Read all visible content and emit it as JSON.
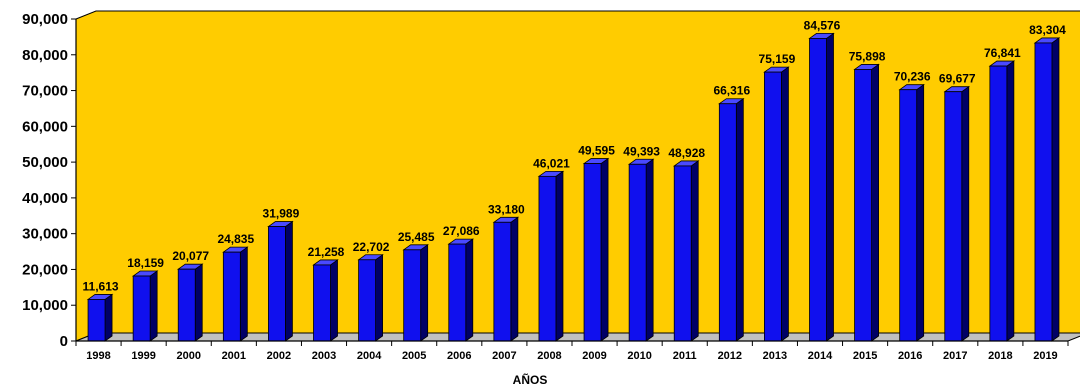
{
  "chart_data": {
    "type": "bar",
    "title": "",
    "xlabel": "AÑOS",
    "ylabel": "",
    "ylim": [
      0,
      90000
    ],
    "yticks": [
      "0",
      "10,000",
      "20,000",
      "30,000",
      "40,000",
      "50,000",
      "60,000",
      "70,000",
      "80,000",
      "90,000"
    ],
    "categories": [
      "1998",
      "1999",
      "2000",
      "2001",
      "2002",
      "2003",
      "2004",
      "2005",
      "2006",
      "2007",
      "2008",
      "2009",
      "2010",
      "2011",
      "2012",
      "2013",
      "2014",
      "2015",
      "2016",
      "2017",
      "2018",
      "2019"
    ],
    "values": [
      11613,
      18159,
      20077,
      24835,
      31989,
      21258,
      22702,
      25485,
      27086,
      33180,
      46021,
      49595,
      49393,
      48928,
      66316,
      75159,
      84576,
      75898,
      70236,
      69677,
      76841,
      83304
    ],
    "data_labels": [
      "11,613",
      "18,159",
      "20,077",
      "24,835",
      "31,989",
      "21,258",
      "22,702",
      "25,485",
      "27,086",
      "33,180",
      "46,021",
      "49,595",
      "49,393",
      "48,928",
      "66,316",
      "75,159",
      "84,576",
      "75,898",
      "70,236",
      "69,677",
      "76,841",
      "83,304"
    ],
    "grid": false,
    "legend": "none",
    "colors": {
      "plot_background": "#FFCC00",
      "floor": "#C0C0C0",
      "bar_front": "#1010EE",
      "bar_side": "#000066",
      "bar_top": "#4A4AFF"
    }
  }
}
